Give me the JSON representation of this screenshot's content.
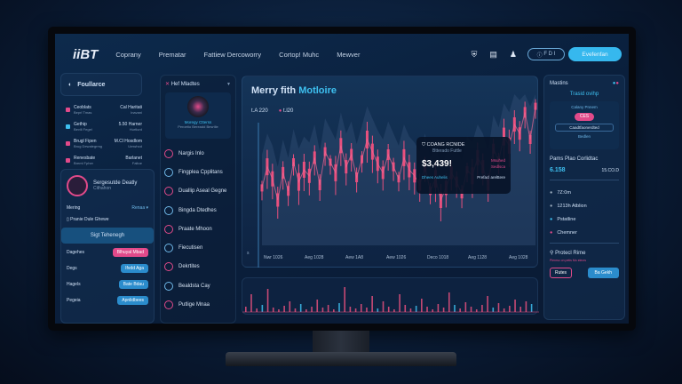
{
  "header": {
    "logo": "iiBT",
    "nav": [
      "Coprany",
      "Prematar",
      "Fattiew Dercoworry",
      "Cortop! Muhc",
      "Mewver"
    ],
    "pill": "F D I",
    "cta": "Evefenfan"
  },
  "left": {
    "title": "Foullarce",
    "items": [
      {
        "name": "Ceoblats",
        "sub": "Beprl Tmas",
        "val": "Cal Haritati",
        "vsub": "Inavani"
      },
      {
        "name": "Gethip",
        "sub": "Bevili Fegel",
        "val": "5.50 Harner",
        "vsub": "Hurtlurd"
      },
      {
        "name": "Brugl Fipen",
        "sub": "Brug Dewalegrmg",
        "val": "M.Cl Hosdlom",
        "vsub": "Umwhod"
      },
      {
        "name": "Renesbate",
        "sub": "Breml Fpher",
        "val": "Barlanet",
        "vsub": "Faltoe"
      }
    ],
    "card": {
      "title": "Sergesutde Deatly",
      "sub": "Cithahon",
      "field": "Mering",
      "select": "Renaa",
      "note": "Pranie Dule Ghewe",
      "action": "Sigt Tehenegh",
      "rows": [
        {
          "label": "Dagehes",
          "btn": "Blhuyal Mbad",
          "color": "#e24a8a"
        },
        {
          "label": "Degs",
          "btn": "Ifvdd Aga",
          "color": "#2b8ccc"
        },
        {
          "label": "Hagels",
          "btn": "Bate Bdau",
          "color": "#2b8ccc"
        },
        {
          "label": "Pegeia",
          "btn": "Apnlidbees",
          "color": "#2b8ccc"
        }
      ]
    }
  },
  "mid": {
    "title": "Hef Mladtes",
    "avatar_caption": "Moregy Ctterss",
    "avatar_sub": "Peroetio Bereadd Besrtlie",
    "items": [
      "Nargis Inlo",
      "Fingplea Cpplitans",
      "Duallip Aseal Gegne",
      "Bingda Dtedhes",
      "Praate Mhoon",
      "Fiecutisen",
      "Dekrtites",
      "Bealdsta Cay",
      "Putlige Mnaa"
    ]
  },
  "chart": {
    "title_a": "Merry fith ",
    "title_b": "Motloire",
    "legend": [
      "t.A 220",
      "t.l20"
    ],
    "ytick": "s",
    "xticks": [
      "Nwr 1026",
      "Aeg 1028",
      "Aew 1A8",
      "Aew 1026",
      "Deco 1018",
      "Aeg 1128",
      "Aeg 1028"
    ],
    "values": [
      38,
      52,
      44,
      30,
      48,
      36,
      55,
      42,
      50,
      46,
      58,
      40,
      62,
      55,
      48,
      66,
      52,
      60,
      45,
      57,
      70,
      62,
      54,
      48,
      60,
      52,
      44,
      58,
      50,
      46,
      40,
      52,
      36,
      44,
      30,
      38,
      48,
      42,
      34,
      50,
      46,
      58,
      52,
      40,
      64,
      56,
      72,
      66,
      80,
      74,
      88,
      70,
      92
    ],
    "volume": [
      6,
      20,
      4,
      8,
      26,
      5,
      3,
      7,
      12,
      4,
      9,
      3,
      6,
      14,
      5,
      8,
      3,
      10,
      28,
      6,
      4,
      9,
      5,
      18,
      4,
      12,
      6,
      3,
      20,
      8,
      4,
      7,
      15,
      6,
      3,
      9,
      5,
      22,
      8,
      4,
      11,
      6,
      3,
      8,
      18,
      5,
      10,
      4,
      7,
      14,
      6,
      12,
      9
    ],
    "tooltip": {
      "name": "COANG RCNIDE",
      "sub": "Btterado Futtle",
      "value": "$3,439!",
      "tag1": "Msuhed",
      "tag2": "Sedlsca",
      "link": "Dhees Auhelis",
      "link2": "Prefacl arelttere"
    },
    "colors": {
      "bar": "#e8507e",
      "accent": "#3ec0f0"
    }
  },
  "right": {
    "title": "Mastins",
    "sub": "Trasid ovihp",
    "box_title": "Calany Pnnem",
    "badge": "CES",
    "btn": "Caadtfaonerdted",
    "foot": "Bedlen",
    "sec": "Pams Plao Corlidtac",
    "v1": "6.158",
    "v2": "15.CO.D",
    "list": [
      "7Z:0m",
      "1213h Atblion",
      "Pstatline",
      "Chemner"
    ],
    "proj": "Protecl Rime",
    "proj_sub": "Plenrsc on petis Mo elecrs",
    "b1": "Rutes",
    "b2": "Ba Gekh"
  }
}
